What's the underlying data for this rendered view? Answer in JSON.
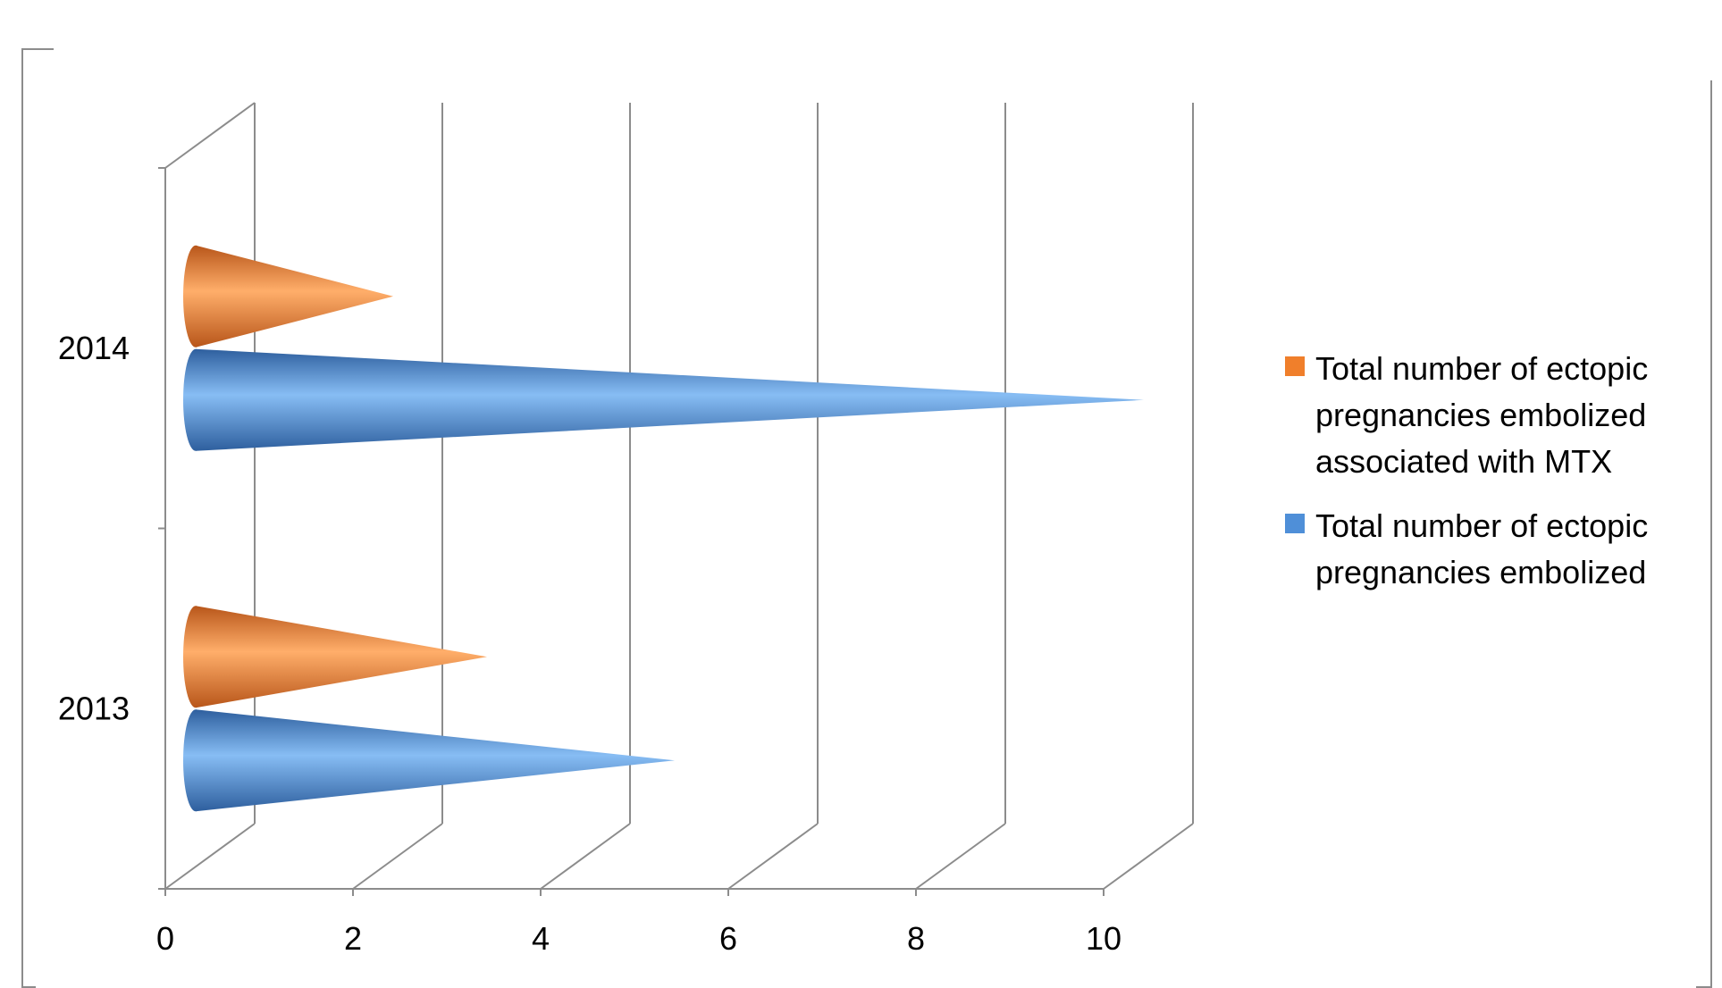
{
  "chart_data": {
    "type": "bar",
    "style": "3d-cone-horizontal",
    "categories": [
      "2013",
      "2014"
    ],
    "series": [
      {
        "name": "Total number of ectopic pregnancies embolized associated with MTX",
        "name_lines": [
          "Total number of ectopic",
          "pregnancies embolized",
          "associated with MTX"
        ],
        "color": "#f07f2b",
        "values": [
          3,
          2
        ]
      },
      {
        "name": "Total number of ectopic pregnancies embolized",
        "name_lines": [
          "Total number of ectopic",
          "pregnancies embolized"
        ],
        "color": "#4f8fd8",
        "values": [
          5,
          10
        ]
      }
    ],
    "x_ticks": [
      "0",
      "2",
      "4",
      "6",
      "8",
      "10"
    ],
    "xlim": [
      0,
      10
    ],
    "grid": true,
    "legend_position": "right"
  }
}
